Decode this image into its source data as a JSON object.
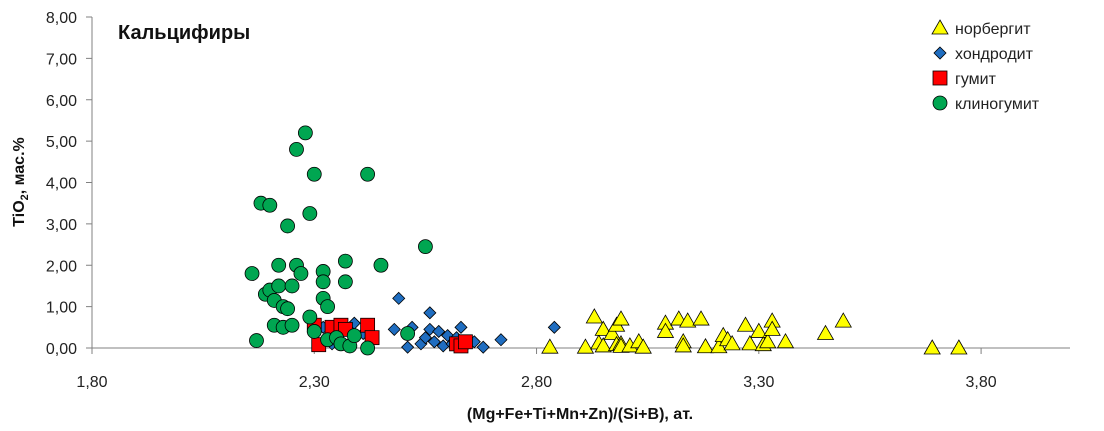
{
  "chart_data": {
    "type": "scatter",
    "title": "Кальцифиры",
    "xlabel": "(Mg+Fe+Ti+Mn+Zn)/(Si+B),  ат.",
    "ylabel": {
      "main": "TiO",
      "sub": "2",
      "suffix": ", мас.%"
    },
    "xlim": [
      1.8,
      4.0
    ],
    "ylim": [
      0,
      8
    ],
    "xticks": [
      "1,80",
      "2,30",
      "2,80",
      "3,30",
      "3,80"
    ],
    "xtick_values": [
      1.8,
      2.3,
      2.8,
      3.3,
      3.8
    ],
    "yticks": [
      "0,00",
      "1,00",
      "2,00",
      "3,00",
      "4,00",
      "5,00",
      "6,00",
      "7,00",
      "8,00"
    ],
    "ytick_values": [
      0,
      1,
      2,
      3,
      4,
      5,
      6,
      7,
      8
    ],
    "grid": false,
    "legend_position": "top-right",
    "series": [
      {
        "name": "норбергит",
        "marker": "triangle",
        "color": "#FFFF00",
        "points": [
          [
            2.83,
            0.02
          ],
          [
            2.91,
            0.02
          ],
          [
            2.93,
            0.75
          ],
          [
            2.94,
            0.12
          ],
          [
            2.95,
            0.45
          ],
          [
            2.95,
            0.05
          ],
          [
            2.97,
            0.35
          ],
          [
            2.98,
            0.55
          ],
          [
            2.98,
            0.08
          ],
          [
            2.99,
            0.7
          ],
          [
            2.99,
            0.1
          ],
          [
            2.99,
            0.04
          ],
          [
            3.01,
            0.05
          ],
          [
            3.03,
            0.15
          ],
          [
            3.04,
            0.02
          ],
          [
            3.09,
            0.6
          ],
          [
            3.09,
            0.4
          ],
          [
            3.12,
            0.7
          ],
          [
            3.13,
            0.15
          ],
          [
            3.13,
            0.05
          ],
          [
            3.14,
            0.65
          ],
          [
            3.17,
            0.7
          ],
          [
            3.18,
            0.03
          ],
          [
            3.21,
            0.03
          ],
          [
            3.22,
            0.3
          ],
          [
            3.23,
            0.2
          ],
          [
            3.24,
            0.1
          ],
          [
            3.27,
            0.55
          ],
          [
            3.28,
            0.1
          ],
          [
            3.3,
            0.4
          ],
          [
            3.31,
            0.08
          ],
          [
            3.32,
            0.15
          ],
          [
            3.33,
            0.65
          ],
          [
            3.33,
            0.45
          ],
          [
            3.36,
            0.15
          ],
          [
            3.45,
            0.35
          ],
          [
            3.49,
            0.65
          ],
          [
            3.69,
            0.0
          ],
          [
            3.75,
            0.0
          ]
        ]
      },
      {
        "name": "хондродит",
        "marker": "diamond",
        "color": "#1F6DC0",
        "points": [
          [
            2.32,
            0.5
          ],
          [
            2.34,
            0.1
          ],
          [
            2.36,
            0.4
          ],
          [
            2.39,
            0.6
          ],
          [
            2.41,
            0.35
          ],
          [
            2.43,
            0.2
          ],
          [
            2.48,
            0.45
          ],
          [
            2.49,
            1.2
          ],
          [
            2.51,
            0.02
          ],
          [
            2.52,
            0.5
          ],
          [
            2.54,
            0.1
          ],
          [
            2.55,
            0.25
          ],
          [
            2.56,
            0.45
          ],
          [
            2.56,
            0.85
          ],
          [
            2.57,
            0.15
          ],
          [
            2.58,
            0.4
          ],
          [
            2.59,
            0.05
          ],
          [
            2.6,
            0.3
          ],
          [
            2.61,
            0.1
          ],
          [
            2.62,
            0.25
          ],
          [
            2.62,
            0.05
          ],
          [
            2.63,
            0.5
          ],
          [
            2.64,
            0.05
          ],
          [
            2.66,
            0.15
          ],
          [
            2.68,
            0.02
          ],
          [
            2.72,
            0.2
          ],
          [
            2.84,
            0.5
          ]
        ]
      },
      {
        "name": "гумит",
        "marker": "square",
        "color": "#FF0000",
        "points": [
          [
            2.3,
            0.55
          ],
          [
            2.31,
            0.08
          ],
          [
            2.34,
            0.5
          ],
          [
            2.36,
            0.55
          ],
          [
            2.37,
            0.45
          ],
          [
            2.42,
            0.55
          ],
          [
            2.43,
            0.25
          ],
          [
            2.62,
            0.1
          ],
          [
            2.63,
            0.05
          ],
          [
            2.64,
            0.15
          ]
        ]
      },
      {
        "name": "клиногумит",
        "marker": "circle",
        "color": "#00A651",
        "points": [
          [
            2.16,
            1.8
          ],
          [
            2.17,
            0.18
          ],
          [
            2.18,
            3.5
          ],
          [
            2.19,
            1.3
          ],
          [
            2.2,
            3.45
          ],
          [
            2.2,
            1.4
          ],
          [
            2.21,
            1.15
          ],
          [
            2.21,
            0.55
          ],
          [
            2.22,
            2.0
          ],
          [
            2.22,
            1.5
          ],
          [
            2.23,
            1.0
          ],
          [
            2.23,
            0.5
          ],
          [
            2.24,
            2.95
          ],
          [
            2.24,
            0.95
          ],
          [
            2.25,
            1.5
          ],
          [
            2.25,
            0.55
          ],
          [
            2.26,
            2.0
          ],
          [
            2.26,
            4.8
          ],
          [
            2.27,
            1.8
          ],
          [
            2.28,
            5.2
          ],
          [
            2.29,
            0.75
          ],
          [
            2.29,
            3.25
          ],
          [
            2.3,
            4.2
          ],
          [
            2.3,
            0.4
          ],
          [
            2.32,
            1.85
          ],
          [
            2.32,
            1.6
          ],
          [
            2.32,
            1.2
          ],
          [
            2.33,
            1.0
          ],
          [
            2.33,
            0.2
          ],
          [
            2.35,
            0.25
          ],
          [
            2.36,
            0.1
          ],
          [
            2.37,
            2.1
          ],
          [
            2.37,
            1.6
          ],
          [
            2.38,
            0.05
          ],
          [
            2.39,
            0.3
          ],
          [
            2.42,
            4.2
          ],
          [
            2.42,
            0.0
          ],
          [
            2.45,
            2.0
          ],
          [
            2.51,
            0.35
          ],
          [
            2.55,
            2.45
          ]
        ]
      }
    ]
  }
}
